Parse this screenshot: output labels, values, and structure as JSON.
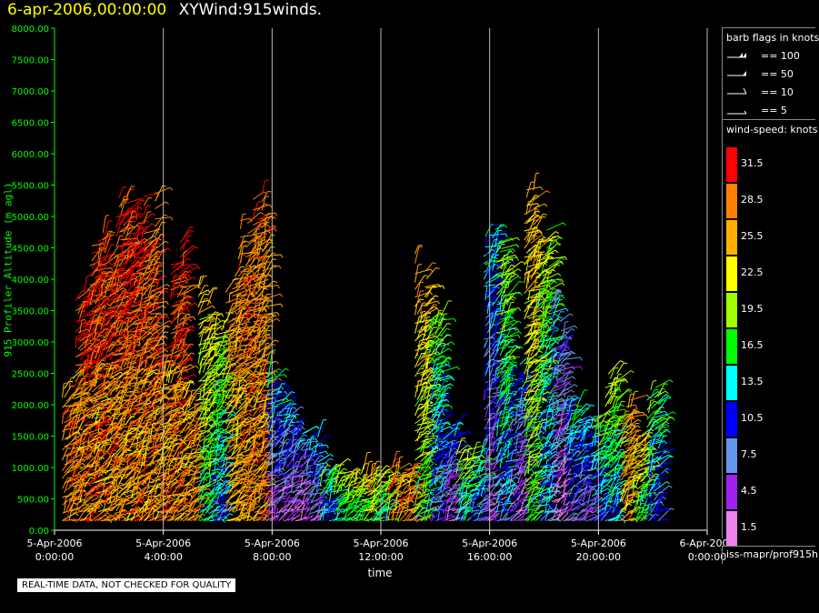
{
  "title": {
    "date": "6-apr-2006,00:00:00",
    "name": "XYWind:915winds."
  },
  "warning": "REAL-TIME DATA, NOT CHECKED FOR QUALITY",
  "legend": {
    "barb_title": "barb flags in knots",
    "barbs": [
      {
        "label": "== 100"
      },
      {
        "label": "== 50"
      },
      {
        "label": "== 10"
      },
      {
        "label": "== 5"
      }
    ],
    "speed_title": "wind-speed: knots",
    "speed_scale": [
      {
        "label": "31.5",
        "color": "#ff0000"
      },
      {
        "label": "28.5",
        "color": "#ff8000"
      },
      {
        "label": "25.5",
        "color": "#ffb000"
      },
      {
        "label": "22.5",
        "color": "#ffff00"
      },
      {
        "label": "19.5",
        "color": "#a0ff00"
      },
      {
        "label": "16.5",
        "color": "#00ff00"
      },
      {
        "label": "13.5",
        "color": "#00ffff"
      },
      {
        "label": "10.5",
        "color": "#0000ff"
      },
      {
        "label": "7.5",
        "color": "#6495ed"
      },
      {
        "label": "4.5",
        "color": "#a020f0"
      },
      {
        "label": "1.5",
        "color": "#ee82ee"
      }
    ],
    "source": "iss-mapr/prof915h"
  },
  "chart_data": {
    "type": "scatter",
    "ylabel": "915 Profiler Altitude (m agl)",
    "xlabel": "time",
    "ylim": [
      0,
      8000
    ],
    "xlim_hours": [
      0,
      24
    ],
    "y_ticks": [
      "0.00",
      "500.00",
      "1000.00",
      "1500.00",
      "2000.00",
      "2500.00",
      "3000.00",
      "3500.00",
      "4000.00",
      "4500.00",
      "5000.00",
      "5500.00",
      "6000.00",
      "6500.00",
      "7000.00",
      "7500.00",
      "8000.00"
    ],
    "x_ticks": [
      {
        "date": "5-Apr-2006",
        "time": "0:00:00"
      },
      {
        "date": "5-Apr-2006",
        "time": "4:00:00"
      },
      {
        "date": "5-Apr-2006",
        "time": "8:00:00"
      },
      {
        "date": "5-Apr-2006",
        "time": "12:00:00"
      },
      {
        "date": "5-Apr-2006",
        "time": "16:00:00"
      },
      {
        "date": "5-Apr-2006",
        "time": "20:00:00"
      },
      {
        "date": "6-Apr-2006",
        "time": "0:00:00"
      }
    ],
    "grid": "vertical",
    "profiles": [
      {
        "hour": 0.5,
        "top": 2400,
        "speed": 31
      },
      {
        "hour": 1.0,
        "top": 3800,
        "speed": 31
      },
      {
        "hour": 1.5,
        "top": 4600,
        "speed": 31
      },
      {
        "hour": 2.0,
        "top": 4700,
        "speed": 30
      },
      {
        "hour": 2.5,
        "top": 5700,
        "speed": 31
      },
      {
        "hour": 3.0,
        "top": 5100,
        "speed": 31
      },
      {
        "hour": 3.5,
        "top": 5200,
        "speed": 29
      },
      {
        "hour": 4.0,
        "top": 3000,
        "speed": 30
      },
      {
        "hour": 4.5,
        "top": 4700,
        "speed": 31
      },
      {
        "hour": 5.0,
        "top": 2200,
        "speed": 28
      },
      {
        "hour": 5.5,
        "top": 3800,
        "speed": 24
      },
      {
        "hour": 6.0,
        "top": 3300,
        "speed": 20
      },
      {
        "hour": 6.5,
        "top": 4100,
        "speed": 27
      },
      {
        "hour": 7.0,
        "top": 5000,
        "speed": 29
      },
      {
        "hour": 7.5,
        "top": 5300,
        "speed": 28
      },
      {
        "hour": 8.0,
        "top": 2500,
        "speed": 14
      },
      {
        "hour": 8.5,
        "top": 2000,
        "speed": 12
      },
      {
        "hour": 9.0,
        "top": 1700,
        "speed": 11
      },
      {
        "hour": 9.5,
        "top": 1500,
        "speed": 14
      },
      {
        "hour": 10.0,
        "top": 1000,
        "speed": 18
      },
      {
        "hour": 10.5,
        "top": 1000,
        "speed": 22
      },
      {
        "hour": 11.0,
        "top": 900,
        "speed": 24
      },
      {
        "hour": 11.5,
        "top": 1000,
        "speed": 26
      },
      {
        "hour": 12.0,
        "top": 900,
        "speed": 22
      },
      {
        "hour": 12.5,
        "top": 1000,
        "speed": 29
      },
      {
        "hour": 13.0,
        "top": 1000,
        "speed": 31
      },
      {
        "hour": 13.5,
        "top": 4200,
        "speed": 26
      },
      {
        "hour": 14.0,
        "top": 3300,
        "speed": 18
      },
      {
        "hour": 14.5,
        "top": 1700,
        "speed": 12
      },
      {
        "hour": 15.0,
        "top": 1300,
        "speed": 22
      },
      {
        "hour": 15.5,
        "top": 1200,
        "speed": 17
      },
      {
        "hour": 16.0,
        "top": 4700,
        "speed": 14
      },
      {
        "hour": 16.5,
        "top": 4800,
        "speed": 20
      },
      {
        "hour": 17.0,
        "top": 2700,
        "speed": 12
      },
      {
        "hour": 17.5,
        "top": 5300,
        "speed": 26
      },
      {
        "hour": 18.0,
        "top": 4600,
        "speed": 20
      },
      {
        "hour": 18.5,
        "top": 3500,
        "speed": 10
      },
      {
        "hour": 19.0,
        "top": 2000,
        "speed": 15
      },
      {
        "hour": 19.5,
        "top": 1800,
        "speed": 14
      },
      {
        "hour": 20.0,
        "top": 1800,
        "speed": 18
      },
      {
        "hour": 20.5,
        "top": 2500,
        "speed": 21
      },
      {
        "hour": 21.0,
        "top": 2000,
        "speed": 27
      },
      {
        "hour": 21.5,
        "top": 1500,
        "speed": 24
      },
      {
        "hour": 22.0,
        "top": 2300,
        "speed": 18
      }
    ]
  }
}
